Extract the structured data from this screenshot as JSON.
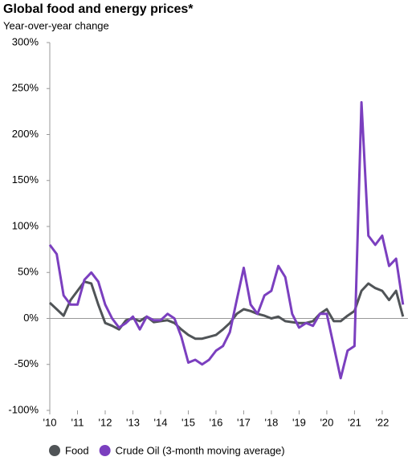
{
  "chart_data": {
    "type": "line",
    "title": "Global food and energy prices*",
    "subtitle": "Year-over-year change",
    "x": [
      2010,
      2010.25,
      2010.5,
      2010.75,
      2011,
      2011.25,
      2011.5,
      2011.75,
      2012,
      2012.25,
      2012.5,
      2012.75,
      2013,
      2013.25,
      2013.5,
      2013.75,
      2014,
      2014.25,
      2014.5,
      2014.75,
      2015,
      2015.25,
      2015.5,
      2015.75,
      2016,
      2016.25,
      2016.5,
      2016.75,
      2017,
      2017.25,
      2017.5,
      2017.75,
      2018,
      2018.25,
      2018.5,
      2018.75,
      2019,
      2019.25,
      2019.5,
      2019.75,
      2020,
      2020.25,
      2020.5,
      2020.75,
      2021,
      2021.25,
      2021.5,
      2021.75,
      2022,
      2022.25,
      2022.5,
      2022.75
    ],
    "series": [
      {
        "name": "Food",
        "color": "#505457",
        "values": [
          17,
          10,
          3,
          20,
          30,
          40,
          38,
          15,
          -5,
          -8,
          -12,
          -2,
          0,
          -3,
          2,
          -4,
          -3,
          -2,
          -5,
          -12,
          -18,
          -22,
          -22,
          -20,
          -18,
          -12,
          -5,
          5,
          10,
          8,
          5,
          3,
          0,
          2,
          -3,
          -4,
          -5,
          -5,
          -3,
          5,
          10,
          -3,
          -3,
          3,
          8,
          30,
          38,
          33,
          30,
          20,
          30,
          2
        ]
      },
      {
        "name": "Crude Oil (3-month moving average)",
        "color": "#7b3fbf",
        "values": [
          80,
          70,
          25,
          15,
          15,
          42,
          50,
          40,
          15,
          0,
          -10,
          -5,
          2,
          -12,
          2,
          -2,
          -2,
          5,
          0,
          -20,
          -48,
          -45,
          -50,
          -45,
          -35,
          -30,
          -15,
          20,
          55,
          15,
          5,
          25,
          30,
          57,
          45,
          5,
          -10,
          -5,
          -8,
          5,
          5,
          -30,
          -65,
          -35,
          -30,
          235,
          90,
          80,
          90,
          57,
          65,
          15
        ]
      }
    ],
    "xlim": [
      2010,
      2022.93
    ],
    "xticks": [
      {
        "value": 2010,
        "label": "'10"
      },
      {
        "value": 2011,
        "label": "'11"
      },
      {
        "value": 2012,
        "label": "'12"
      },
      {
        "value": 2013,
        "label": "'13"
      },
      {
        "value": 2014,
        "label": "'14"
      },
      {
        "value": 2015,
        "label": "'15"
      },
      {
        "value": 2016,
        "label": "'16"
      },
      {
        "value": 2017,
        "label": "'17"
      },
      {
        "value": 2018,
        "label": "'18"
      },
      {
        "value": 2019,
        "label": "'19"
      },
      {
        "value": 2020,
        "label": "'20"
      },
      {
        "value": 2021,
        "label": "'21"
      },
      {
        "value": 2022,
        "label": "'22"
      }
    ],
    "ylim": [
      -100,
      300
    ],
    "yticks": [
      {
        "value": -100,
        "label": "-100%"
      },
      {
        "value": -50,
        "label": "-50%"
      },
      {
        "value": 0,
        "label": "0%"
      },
      {
        "value": 50,
        "label": "50%"
      },
      {
        "value": 100,
        "label": "100%"
      },
      {
        "value": 150,
        "label": "150%"
      },
      {
        "value": 200,
        "label": "200%"
      },
      {
        "value": 250,
        "label": "250%"
      },
      {
        "value": 300,
        "label": "300%"
      }
    ]
  }
}
